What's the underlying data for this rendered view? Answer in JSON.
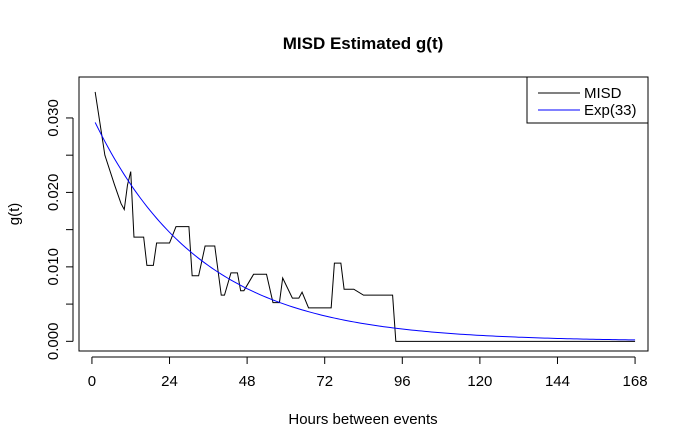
{
  "chart_data": {
    "type": "line",
    "title": "MISD Estimated g(t)",
    "xlabel": "Hours between events",
    "ylabel": "g(t)",
    "xlim": [
      -4,
      172
    ],
    "ylim": [
      -0.0013,
      0.0355
    ],
    "x_ticks": [
      0,
      24,
      48,
      72,
      96,
      120,
      144,
      168
    ],
    "y_ticks": [
      0.0,
      0.01,
      0.02,
      0.03
    ],
    "y_tick_labels": [
      "0.000",
      "0.010",
      "0.020",
      "0.030"
    ],
    "grid": false,
    "legend": {
      "position": "top-right",
      "entries": [
        {
          "label": "MISD",
          "color": "#000000"
        },
        {
          "label": "Exp(33)",
          "color": "#0000ff"
        }
      ]
    },
    "series": [
      {
        "name": "MISD",
        "color": "#000000",
        "x": [
          1,
          4,
          7,
          9,
          10,
          11,
          12,
          13,
          14,
          16,
          17,
          19,
          20,
          22,
          24,
          26,
          28,
          30,
          31,
          33,
          35,
          37,
          38,
          40,
          41,
          43,
          44,
          45,
          46,
          47,
          50,
          53,
          54,
          56,
          57,
          58,
          59,
          62,
          63,
          64,
          65,
          67,
          70,
          74,
          75,
          77,
          78,
          80,
          81,
          84,
          86,
          88,
          89,
          92,
          93,
          94,
          95,
          120,
          140,
          168
        ],
        "y": [
          0.0335,
          0.025,
          0.021,
          0.0185,
          0.0177,
          0.021,
          0.0228,
          0.014,
          0.014,
          0.014,
          0.0102,
          0.0102,
          0.0132,
          0.0132,
          0.0132,
          0.0154,
          0.0154,
          0.0154,
          0.0088,
          0.0088,
          0.0128,
          0.0128,
          0.0128,
          0.0062,
          0.0062,
          0.0092,
          0.0092,
          0.0092,
          0.0068,
          0.0068,
          0.009,
          0.009,
          0.009,
          0.0052,
          0.0052,
          0.0052,
          0.0085,
          0.0058,
          0.0058,
          0.0058,
          0.0066,
          0.0045,
          0.0045,
          0.0045,
          0.0105,
          0.0105,
          0.007,
          0.007,
          0.007,
          0.0062,
          0.0062,
          0.0062,
          0.0062,
          0.0062,
          0.0062,
          0.0,
          0.0,
          0.0,
          0.0,
          0.0
        ]
      },
      {
        "name": "Exp(33)",
        "color": "#0000ff",
        "function": "exponential",
        "rate_hours": 33,
        "x_range": [
          1,
          168
        ]
      }
    ]
  }
}
